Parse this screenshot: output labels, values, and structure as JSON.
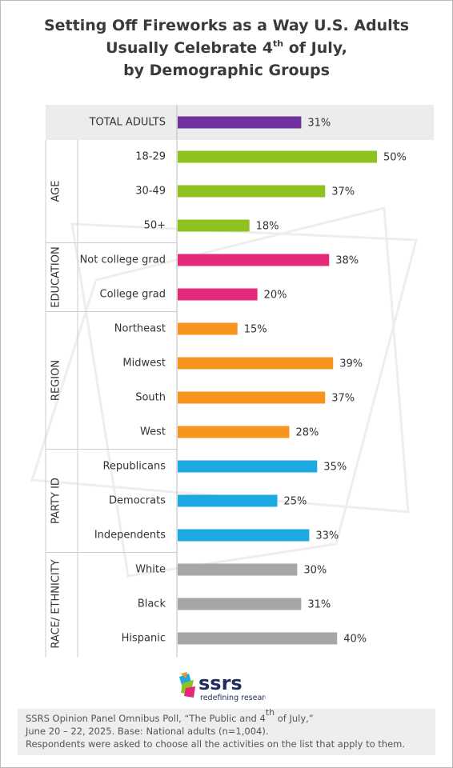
{
  "chart_data": {
    "type": "bar",
    "title": {
      "line1": "Setting Off Fireworks as a Way U.S. Adults",
      "line2": "Usually Celebrate 4",
      "line2_sup": "th",
      "line2_end": " of July,",
      "line3": "by Demographic Groups"
    },
    "total": {
      "category": "TOTAL ADULTS",
      "value": 31,
      "value_label": "31%",
      "color": "#7030a0"
    },
    "groups": [
      {
        "name": "AGE",
        "color": "#8dc21f",
        "categories": [
          "18-29",
          "30-49",
          "50+"
        ],
        "values": [
          50,
          37,
          18
        ],
        "value_labels": [
          "50%",
          "37%",
          "18%"
        ]
      },
      {
        "name": "EDUCATION",
        "color": "#e6287a",
        "categories": [
          "Not college grad",
          "College grad"
        ],
        "values": [
          38,
          20
        ],
        "value_labels": [
          "38%",
          "20%"
        ]
      },
      {
        "name": "REGION",
        "color": "#f7941d",
        "categories": [
          "Northeast",
          "Midwest",
          "South",
          "West"
        ],
        "values": [
          15,
          39,
          37,
          28
        ],
        "value_labels": [
          "15%",
          "39%",
          "37%",
          "28%"
        ]
      },
      {
        "name": "PARTY ID",
        "color": "#1ba9e1",
        "categories": [
          "Republicans",
          "Democrats",
          "Independents"
        ],
        "values": [
          35,
          25,
          33
        ],
        "value_labels": [
          "35%",
          "25%",
          "33%"
        ]
      },
      {
        "name": "RACE/ ETHNICITY",
        "color": "#a6a6a6",
        "categories": [
          "White",
          "Black",
          "Hispanic"
        ],
        "values": [
          30,
          31,
          40
        ],
        "value_labels": [
          "30%",
          "31%",
          "40%"
        ]
      }
    ]
  },
  "logo": {
    "name": "ssrs",
    "tagline": "redefining research"
  },
  "note": {
    "line1": "SSRS Opinion Panel Omnibus Poll, “The Public and 4",
    "line1_sup": "th",
    "line1_end": " of July,”",
    "line2": "June 20 – 22, 2025. Base: National adults (n=1,004).",
    "line3": "Respondents were asked to choose all the activities on the list that apply to them."
  }
}
